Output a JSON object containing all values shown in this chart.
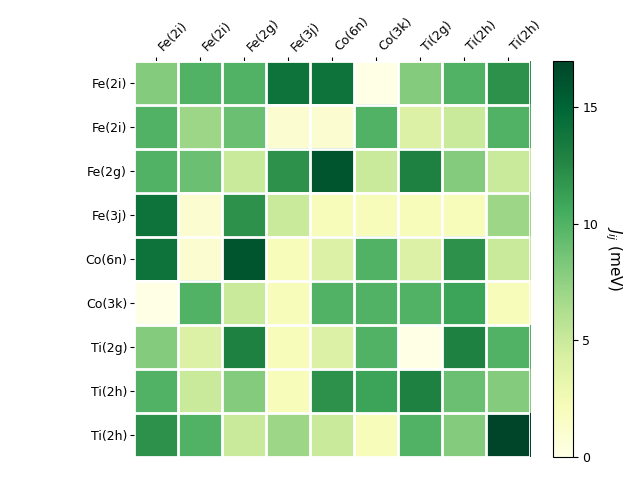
{
  "labels": [
    "Fe(2i)",
    "Fe(2i)",
    "Fe(2g)",
    "Fe(3j)",
    "Co(6n)",
    "Co(3k)",
    "Ti(2g)",
    "Ti(2h)",
    "Ti(2h)"
  ],
  "matrix": [
    [
      8,
      10,
      10,
      14,
      14,
      0,
      8,
      10,
      12
    ],
    [
      10,
      7,
      9,
      1,
      1,
      10,
      4,
      5,
      10
    ],
    [
      10,
      9,
      5,
      12,
      16,
      5,
      13,
      8,
      5
    ],
    [
      14,
      1,
      12,
      5,
      2,
      2,
      2,
      2,
      7
    ],
    [
      14,
      1,
      16,
      2,
      4,
      10,
      4,
      12,
      5
    ],
    [
      0,
      10,
      5,
      2,
      10,
      10,
      10,
      11,
      2
    ],
    [
      8,
      4,
      13,
      2,
      4,
      10,
      0,
      13,
      10
    ],
    [
      10,
      5,
      8,
      2,
      12,
      11,
      13,
      9,
      8
    ],
    [
      12,
      10,
      5,
      7,
      5,
      2,
      10,
      8,
      17
    ]
  ],
  "vmin": 0,
  "vmax": 17,
  "cbar_label": "$J_{ij}$ (meV)",
  "cbar_ticks": [
    0,
    5,
    10,
    15
  ],
  "cmap": "YlGn",
  "figsize": [
    6.4,
    4.8
  ],
  "dpi": 100
}
